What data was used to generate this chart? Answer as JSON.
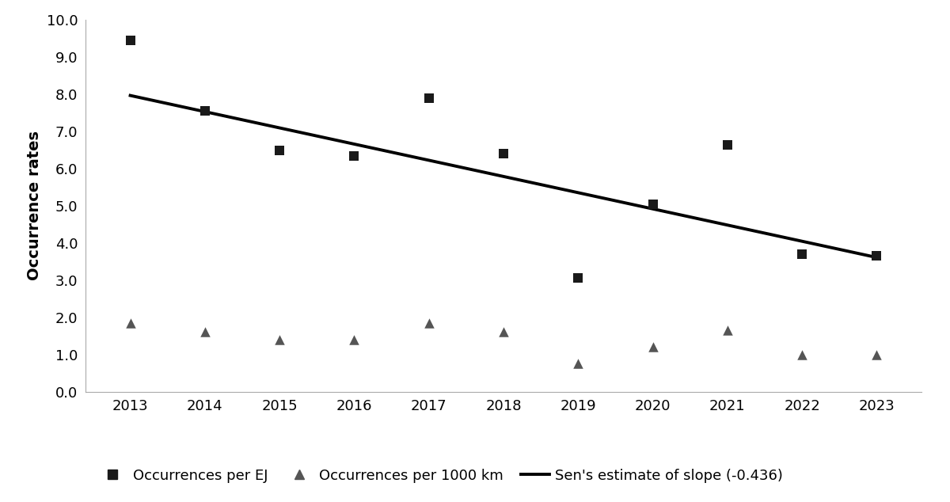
{
  "years": [
    2013,
    2014,
    2015,
    2016,
    2017,
    2018,
    2019,
    2020,
    2021,
    2022,
    2023
  ],
  "occurrences_per_EJ": [
    9.45,
    7.55,
    6.5,
    6.35,
    7.9,
    6.4,
    3.05,
    5.05,
    6.65,
    3.7,
    3.65
  ],
  "occurrences_per_1000km": [
    1.85,
    1.6,
    1.4,
    1.4,
    1.85,
    1.6,
    0.75,
    1.2,
    1.65,
    1.0,
    1.0
  ],
  "sen_slope": -0.436,
  "sen_intercept_at_2013": 7.97,
  "ylabel": "Occurrence rates",
  "ylim": [
    0.0,
    10.0
  ],
  "yticks": [
    0.0,
    1.0,
    2.0,
    3.0,
    4.0,
    5.0,
    6.0,
    7.0,
    8.0,
    9.0,
    10.0
  ],
  "background_color": "#ffffff",
  "square_color": "#1a1a1a",
  "triangle_color": "#555555",
  "line_color": "#000000",
  "legend_labels": [
    "Occurrences per EJ",
    "Occurrences per 1000 km",
    "Sen's estimate of slope (-0.436)"
  ],
  "square_marker_size": 9,
  "triangle_marker_size": 9,
  "line_width": 2.8,
  "axis_fontsize": 14,
  "tick_fontsize": 13,
  "legend_fontsize": 13
}
